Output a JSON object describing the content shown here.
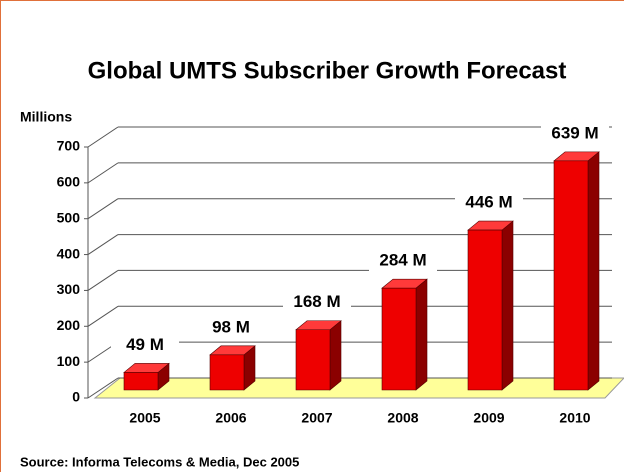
{
  "chart_data": {
    "type": "bar",
    "title": "Global UMTS Subscriber Growth Forecast",
    "y_label": "Millions",
    "categories": [
      "2005",
      "2006",
      "2007",
      "2008",
      "2009",
      "2010"
    ],
    "values": [
      49,
      98,
      168,
      284,
      446,
      639
    ],
    "value_labels": [
      "49 M",
      "98 M",
      "168 M",
      "284 M",
      "446 M",
      "639 M"
    ],
    "color": "#ee0000",
    "ylim": [
      0,
      700
    ],
    "yticks": [
      0,
      100,
      200,
      300,
      400,
      500,
      600,
      700
    ],
    "grid": true,
    "source": "Source: Informa Telecoms & Media, Dec 2005"
  }
}
